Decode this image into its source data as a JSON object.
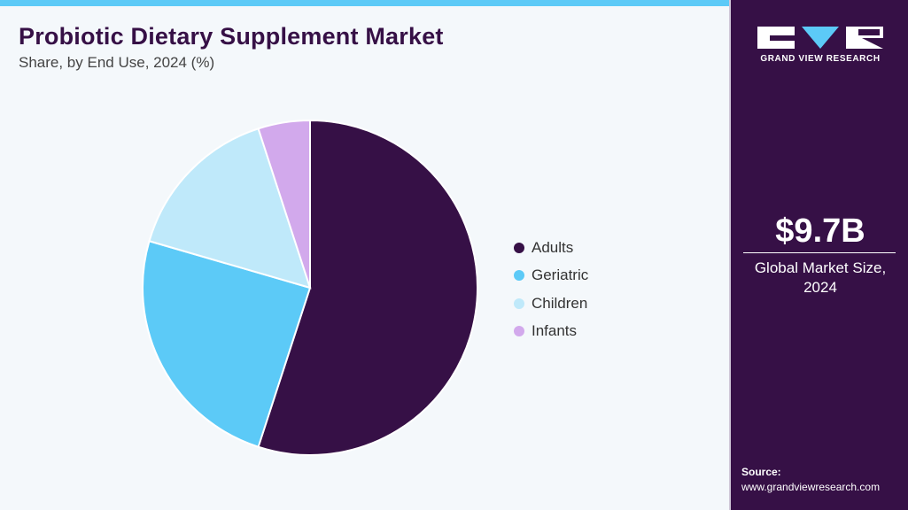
{
  "header": {
    "title": "Probiotic Dietary Supplement Market",
    "subtitle": "Share, by End Use, 2024 (%)"
  },
  "colors": {
    "accent": "#5ccaf7",
    "brand_dark": "#361046",
    "background": "#f4f8fb"
  },
  "chart_data": {
    "type": "pie",
    "title": "Probiotic Dietary Supplement Market",
    "subtitle": "Share, by End Use, 2024 (%)",
    "legend_position": "right",
    "start_angle_deg": 0,
    "direction": "clockwise",
    "slices": [
      {
        "label": "Adults",
        "value": 55.0,
        "color": "#361046"
      },
      {
        "label": "Geriatric",
        "value": 24.5,
        "color": "#5ccaf7"
      },
      {
        "label": "Children",
        "value": 15.5,
        "color": "#bfe9fa"
      },
      {
        "label": "Infants",
        "value": 5.0,
        "color": "#d2a9ec"
      }
    ]
  },
  "sidebar": {
    "logo_icon": "grand-view-research-logo",
    "logo_text": "GRAND VIEW RESEARCH",
    "market_value": "$9.7B",
    "market_label_line1": "Global Market Size,",
    "market_label_line2": "2024",
    "source_label": "Source:",
    "source_url": "www.grandviewresearch.com"
  }
}
